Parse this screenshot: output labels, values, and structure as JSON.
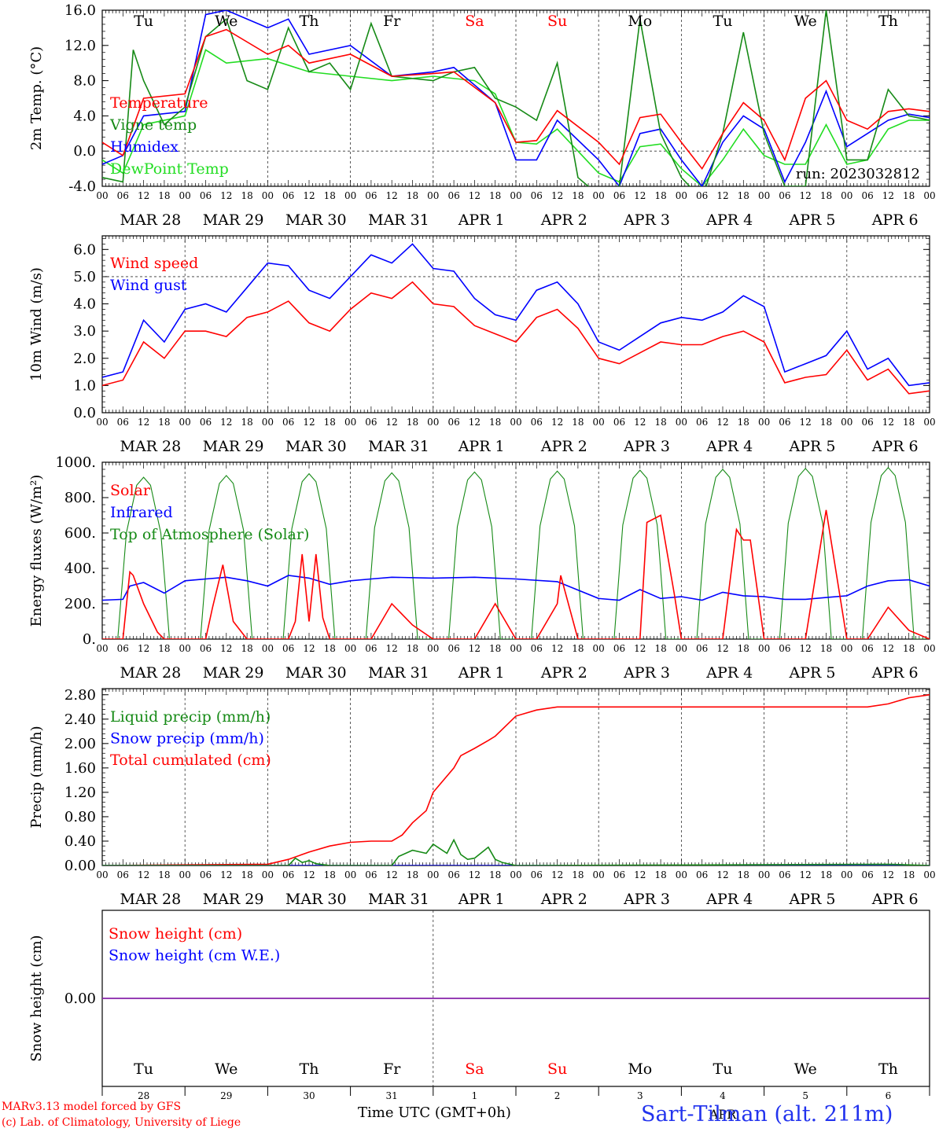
{
  "colors": {
    "red": "#ff0000",
    "green": "#168a16",
    "blue": "#0000ff",
    "lightgreen": "#22dd22",
    "purple": "#8822aa",
    "weekend": "#ff0000",
    "site": "#2233ee"
  },
  "time_axis": {
    "hour_labels": [
      "00",
      "06",
      "12",
      "18"
    ],
    "date_labels": [
      "MAR 28",
      "MAR 29",
      "MAR 30",
      "MAR 31",
      "APR  1",
      "APR  2",
      "APR  3",
      "APR  4",
      "APR  5",
      "APR  6"
    ],
    "weekday_labels": [
      "Tu",
      "We",
      "Th",
      "Fr",
      "Sa",
      "Su",
      "Mo",
      "Tu",
      "We",
      "Th"
    ],
    "weekend_index": [
      4,
      5
    ],
    "day_numbers": [
      "28",
      "29",
      "30",
      "31",
      "1",
      "2",
      "3",
      "4",
      "5",
      "6"
    ],
    "final_tick": "00",
    "xlabel": "Time UTC (GMT+0h)",
    "overlap_label": "APR"
  },
  "footer": {
    "model_line": "MARv3.13 model forced by GFS",
    "lab_line": "(c) Lab. of Climatology, University of Liege",
    "site_label": "Sart-Tilman (alt. 211m)"
  },
  "chart_data": [
    {
      "type": "line",
      "ylabel": "2m Temp. (°C)",
      "ylim": [
        -4.0,
        16.0
      ],
      "yticks": [
        "-4.0",
        "0.0",
        "4.0",
        "8.0",
        "12.0",
        "16.0"
      ],
      "annotation": "run: 2023032812",
      "x_unit": "hours since MAR 28 00 UTC",
      "series": [
        {
          "name": "Temperature",
          "color": "red",
          "x": [
            0,
            6,
            12,
            24,
            30,
            36,
            48,
            54,
            60,
            72,
            84,
            96,
            102,
            114,
            120,
            126,
            132,
            144,
            150,
            156,
            162,
            168,
            174,
            180,
            186,
            192,
            198,
            204,
            210,
            216,
            222,
            228,
            234,
            240
          ],
          "y": [
            1.0,
            -0.5,
            6.0,
            6.5,
            13.0,
            13.8,
            11.0,
            12.0,
            10.0,
            11.0,
            8.5,
            8.8,
            9.0,
            5.5,
            1.0,
            1.2,
            4.6,
            1.0,
            -1.5,
            3.8,
            4.2,
            1.0,
            -2.0,
            2.0,
            5.5,
            3.5,
            -1.0,
            6.0,
            8.0,
            3.5,
            2.5,
            4.5,
            4.8,
            4.5
          ]
        },
        {
          "name": "Vigne temp",
          "color": "green",
          "x": [
            0,
            6,
            9,
            12,
            18,
            24,
            30,
            36,
            42,
            48,
            54,
            60,
            66,
            72,
            78,
            84,
            96,
            102,
            108,
            114,
            120,
            126,
            132,
            138,
            144,
            150,
            156,
            162,
            168,
            174,
            180,
            186,
            192,
            198,
            204,
            210,
            216,
            222,
            228,
            234,
            240
          ],
          "y": [
            -3.0,
            -3.5,
            11.5,
            8.0,
            3.0,
            5.0,
            13.0,
            15.0,
            8.0,
            7.0,
            14.0,
            9.0,
            10.0,
            7.0,
            14.5,
            8.5,
            8.0,
            9.0,
            9.5,
            6.0,
            5.0,
            3.5,
            10.0,
            -3.0,
            -5.0,
            -4.0,
            15.0,
            2.0,
            -3.0,
            -5.5,
            2.0,
            13.5,
            2.0,
            -4.0,
            -4.0,
            16.0,
            -1.0,
            -1.0,
            7.0,
            4.0,
            3.5
          ]
        },
        {
          "name": "Humidex",
          "color": "blue",
          "x": [
            0,
            6,
            12,
            24,
            30,
            36,
            48,
            54,
            60,
            72,
            84,
            96,
            102,
            114,
            120,
            126,
            132,
            144,
            150,
            156,
            162,
            168,
            174,
            180,
            186,
            192,
            198,
            204,
            210,
            216,
            222,
            228,
            234,
            240
          ],
          "y": [
            -1.5,
            -0.5,
            4.0,
            4.5,
            15.5,
            16.0,
            14.0,
            15.0,
            11.0,
            12.0,
            8.5,
            9.0,
            9.5,
            5.5,
            -1.0,
            -1.0,
            3.5,
            -1.0,
            -4.0,
            2.0,
            2.5,
            -1.0,
            -4.0,
            1.0,
            4.0,
            2.5,
            -3.5,
            1.0,
            6.8,
            0.5,
            2.0,
            3.5,
            4.2,
            3.8
          ]
        },
        {
          "name": "DewPoint Temp",
          "color": "lightgreen",
          "x": [
            0,
            6,
            12,
            24,
            30,
            36,
            48,
            60,
            72,
            84,
            96,
            108,
            114,
            120,
            126,
            132,
            144,
            150,
            156,
            162,
            168,
            174,
            180,
            186,
            192,
            198,
            204,
            210,
            216,
            222,
            228,
            234,
            240
          ],
          "y": [
            -1.0,
            -2.5,
            3.0,
            4.0,
            11.5,
            10.0,
            10.5,
            9.0,
            8.5,
            8.0,
            8.5,
            8.0,
            6.5,
            1.0,
            0.8,
            2.5,
            -2.5,
            -3.5,
            0.5,
            0.8,
            -2.0,
            -4.0,
            -1.0,
            2.5,
            -0.5,
            -1.5,
            -1.5,
            3.0,
            -1.5,
            -1.0,
            2.5,
            3.5,
            3.5
          ]
        }
      ]
    },
    {
      "type": "line",
      "ylabel": "10m Wind (m/s)",
      "ylim": [
        0.0,
        6.5
      ],
      "yticks": [
        "0.0",
        "1.0",
        "2.0",
        "3.0",
        "4.0",
        "5.0",
        "6.0"
      ],
      "series": [
        {
          "name": "Wind speed",
          "color": "red",
          "x": [
            0,
            6,
            12,
            18,
            24,
            30,
            36,
            42,
            48,
            54,
            60,
            66,
            72,
            78,
            84,
            90,
            96,
            102,
            108,
            114,
            120,
            126,
            132,
            138,
            144,
            150,
            156,
            162,
            168,
            174,
            180,
            186,
            192,
            198,
            204,
            210,
            216,
            222,
            228,
            234,
            240
          ],
          "y": [
            1.0,
            1.2,
            2.6,
            2.0,
            3.0,
            3.0,
            2.8,
            3.5,
            3.7,
            4.1,
            3.3,
            3.0,
            3.8,
            4.4,
            4.2,
            4.8,
            4.0,
            3.9,
            3.2,
            2.9,
            2.6,
            3.5,
            3.8,
            3.1,
            2.0,
            1.8,
            2.2,
            2.6,
            2.5,
            2.5,
            2.8,
            3.0,
            2.6,
            1.1,
            1.3,
            1.4,
            2.3,
            1.2,
            1.6,
            0.7,
            0.8
          ]
        },
        {
          "name": "Wind gust",
          "color": "blue",
          "x": [
            0,
            6,
            12,
            18,
            24,
            30,
            36,
            42,
            48,
            54,
            60,
            66,
            72,
            78,
            84,
            90,
            96,
            102,
            108,
            114,
            120,
            126,
            132,
            138,
            144,
            150,
            156,
            162,
            168,
            174,
            180,
            186,
            192,
            198,
            204,
            210,
            216,
            222,
            228,
            234,
            240
          ],
          "y": [
            1.3,
            1.5,
            3.4,
            2.6,
            3.8,
            4.0,
            3.7,
            4.6,
            5.5,
            5.4,
            4.5,
            4.2,
            5.0,
            5.8,
            5.5,
            6.2,
            5.3,
            5.2,
            4.2,
            3.6,
            3.4,
            4.5,
            4.8,
            4.0,
            2.6,
            2.3,
            2.8,
            3.3,
            3.5,
            3.4,
            3.7,
            4.3,
            3.9,
            1.5,
            1.8,
            2.1,
            3.0,
            1.6,
            2.0,
            1.0,
            1.1
          ]
        }
      ]
    },
    {
      "type": "line",
      "ylabel": "Energy fluxes (W/m²)",
      "ylim": [
        0,
        1000
      ],
      "yticks": [
        "0.",
        "200.",
        "400.",
        "600.",
        "800.",
        "1000."
      ],
      "series": [
        {
          "name": "Solar",
          "color": "red",
          "x": [
            0,
            6,
            8,
            9,
            12,
            16,
            18,
            24,
            30,
            32,
            35,
            38,
            42,
            48,
            54,
            56,
            58,
            60,
            62,
            64,
            66,
            72,
            78,
            84,
            90,
            96,
            102,
            108,
            114,
            120,
            126,
            132,
            133,
            138,
            144,
            150,
            156,
            158,
            162,
            166,
            168,
            174,
            180,
            184,
            186,
            188,
            192,
            198,
            204,
            210,
            216,
            222,
            228,
            234,
            240
          ],
          "y": [
            0,
            0,
            380,
            360,
            200,
            40,
            0,
            0,
            0,
            180,
            420,
            100,
            0,
            0,
            0,
            100,
            480,
            100,
            480,
            120,
            0,
            0,
            0,
            200,
            80,
            0,
            0,
            0,
            200,
            0,
            0,
            200,
            360,
            0,
            0,
            0,
            0,
            660,
            700,
            250,
            0,
            0,
            0,
            620,
            560,
            560,
            0,
            0,
            0,
            730,
            0,
            0,
            180,
            50,
            0
          ]
        },
        {
          "name": "Infrared",
          "color": "blue",
          "x": [
            0,
            6,
            8,
            12,
            18,
            24,
            30,
            36,
            42,
            48,
            54,
            60,
            66,
            72,
            78,
            84,
            96,
            108,
            120,
            132,
            144,
            150,
            156,
            162,
            168,
            174,
            180,
            186,
            192,
            198,
            204,
            210,
            216,
            222,
            228,
            234,
            240
          ],
          "y": [
            220,
            225,
            300,
            320,
            260,
            330,
            340,
            350,
            330,
            300,
            360,
            345,
            310,
            330,
            340,
            350,
            345,
            350,
            340,
            325,
            230,
            220,
            280,
            230,
            240,
            220,
            265,
            245,
            240,
            225,
            225,
            235,
            245,
            300,
            330,
            335,
            300
          ]
        },
        {
          "name": "Top of Atmosphere (Solar)",
          "color": "green",
          "x": [
            0,
            4.5,
            7,
            10,
            12,
            14,
            17,
            19.5,
            24,
            28.5,
            31,
            34,
            36,
            38,
            41,
            43.5,
            48,
            52.5,
            55,
            58,
            60,
            62,
            65,
            67.5,
            72,
            76.5,
            79,
            82,
            84,
            86,
            89,
            91.5,
            96,
            100.5,
            103,
            106,
            108,
            110,
            113,
            115.5,
            120,
            124.5,
            127,
            130,
            132,
            134,
            137,
            139.5,
            144,
            148.5,
            151,
            154,
            156,
            158,
            161,
            163.5,
            168,
            172.5,
            175,
            178,
            180,
            182,
            185,
            187.5,
            192,
            196.5,
            199,
            202,
            204,
            206,
            209,
            211.5,
            216,
            220.5,
            223,
            226,
            228,
            230,
            233,
            235.5,
            240
          ],
          "y": [
            0,
            0,
            600,
            870,
            915,
            870,
            600,
            0,
            0,
            0,
            615,
            880,
            925,
            880,
            615,
            0,
            0,
            0,
            625,
            890,
            935,
            890,
            625,
            0,
            0,
            0,
            630,
            895,
            940,
            895,
            630,
            0,
            0,
            0,
            635,
            900,
            945,
            900,
            635,
            0,
            0,
            0,
            640,
            905,
            950,
            905,
            640,
            0,
            0,
            0,
            645,
            910,
            955,
            910,
            645,
            0,
            0,
            0,
            650,
            915,
            960,
            915,
            650,
            0,
            0,
            0,
            655,
            920,
            965,
            920,
            655,
            0,
            0,
            0,
            660,
            925,
            970,
            925,
            660,
            0,
            0
          ]
        }
      ]
    },
    {
      "type": "line",
      "ylabel": "Precip (mm/h)",
      "ylim": [
        0.0,
        2.9
      ],
      "yticks": [
        "0.00",
        "0.40",
        "0.80",
        "1.20",
        "1.60",
        "2.00",
        "2.40",
        "2.80"
      ],
      "series": [
        {
          "name": "Liquid precip (mm/h)",
          "color": "green",
          "x": [
            0,
            54,
            56,
            58,
            60,
            62,
            66,
            72,
            84,
            86,
            90,
            94,
            96,
            100,
            102,
            104,
            106,
            108,
            112,
            114,
            116,
            120,
            126,
            228,
            240
          ],
          "y": [
            0,
            0,
            0.12,
            0.05,
            0.08,
            0.03,
            0,
            0,
            0,
            0.15,
            0.25,
            0.2,
            0.35,
            0.2,
            0.42,
            0.18,
            0.1,
            0.12,
            0.3,
            0.1,
            0.05,
            0,
            0,
            0.02,
            0
          ]
        },
        {
          "name": "Snow precip (mm/h)",
          "color": "blue",
          "x": [
            0,
            240
          ],
          "y": [
            0,
            0
          ]
        },
        {
          "name": "Total cumulated (cm)",
          "color": "red",
          "x": [
            0,
            24,
            48,
            54,
            60,
            66,
            72,
            78,
            84,
            87,
            90,
            94,
            96,
            102,
            104,
            108,
            112,
            114,
            120,
            126,
            132,
            144,
            168,
            192,
            216,
            222,
            228,
            234,
            240
          ],
          "y": [
            0,
            0.01,
            0.02,
            0.1,
            0.22,
            0.32,
            0.38,
            0.4,
            0.4,
            0.5,
            0.7,
            0.9,
            1.2,
            1.6,
            1.8,
            1.92,
            2.05,
            2.12,
            2.45,
            2.55,
            2.6,
            2.6,
            2.6,
            2.6,
            2.6,
            2.6,
            2.65,
            2.75,
            2.8
          ]
        }
      ]
    },
    {
      "type": "line",
      "ylabel": "Snow height (cm)",
      "yticks": [
        "0.00"
      ],
      "series": [
        {
          "name": "Snow height (cm)",
          "color": "red",
          "x": [
            0,
            240
          ],
          "y": [
            0,
            0
          ]
        },
        {
          "name": "Snow height (cm W.E.)",
          "color": "blue",
          "x": [
            0,
            240
          ],
          "y": [
            0,
            0
          ]
        }
      ]
    }
  ]
}
